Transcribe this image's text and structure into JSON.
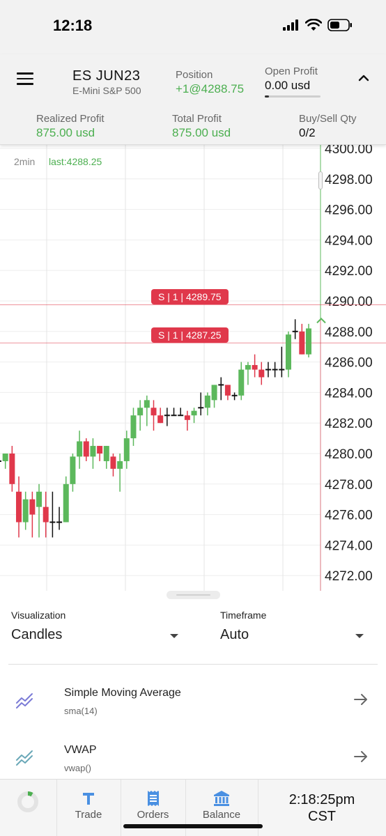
{
  "status_bar": {
    "time": "12:18"
  },
  "header": {
    "symbol": "ES JUN23",
    "symbol_desc": "E-Mini S&P 500",
    "position_label": "Position",
    "position_value": "+1@4288.75",
    "open_profit_label": "Open Profit",
    "open_profit_value": "0.00 usd",
    "realized_label": "Realized Profit",
    "realized_value": "875.00 usd",
    "total_label": "Total Profit",
    "total_value": "875.00 usd",
    "buysell_label": "Buy/Sell Qty",
    "buysell_value": "0/2"
  },
  "chart": {
    "interval": "2min",
    "last": "last:4288.25",
    "orders": [
      {
        "label": "S | 1 | 4289.75",
        "price": 4289.75
      },
      {
        "label": "S | 1 | 4287.25",
        "price": 4287.25
      }
    ],
    "colors": {
      "up": "#5cb85c",
      "down": "#e0384b",
      "doji": "#111111",
      "order": "#e0384b"
    }
  },
  "chart_data": {
    "type": "candlestick",
    "y_axis_ticks": [
      4300,
      4298,
      4296,
      4294,
      4292,
      4290,
      4288,
      4286,
      4284,
      4282,
      4280,
      4278,
      4276,
      4274,
      4272
    ],
    "y_axis_labels": [
      "4300.00",
      "4298.00",
      "4296.00",
      "4294.00",
      "4292.00",
      "4290.00",
      "4288.00",
      "4286.00",
      "4284.00",
      "4282.00",
      "4280.00",
      "4278.00",
      "4276.00",
      "4274.00",
      "4272.00"
    ],
    "ylim": [
      4271.5,
      4300.5
    ],
    "grid": true,
    "candles": [
      {
        "o": 4279.5,
        "h": 4280.5,
        "l": 4279.0,
        "c": 4279.5
      },
      {
        "o": 4279.5,
        "h": 4280.0,
        "l": 4279.0,
        "c": 4280.0
      },
      {
        "o": 4280.0,
        "h": 4280.5,
        "l": 4277.5,
        "c": 4278.0
      },
      {
        "o": 4277.5,
        "h": 4278.5,
        "l": 4274.5,
        "c": 4275.5
      },
      {
        "o": 4275.5,
        "h": 4277.5,
        "l": 4275.0,
        "c": 4277.0
      },
      {
        "o": 4277.0,
        "h": 4277.5,
        "l": 4274.5,
        "c": 4276.0
      },
      {
        "o": 4276.5,
        "h": 4278.0,
        "l": 4274.5,
        "c": 4277.5
      },
      {
        "o": 4276.5,
        "h": 4277.5,
        "l": 4274.5,
        "c": 4275.5
      },
      {
        "o": 4275.5,
        "h": 4277.5,
        "l": 4274.5,
        "c": 4275.5
      },
      {
        "o": 4275.5,
        "h": 4276.5,
        "l": 4275.0,
        "c": 4275.5
      },
      {
        "o": 4275.5,
        "h": 4278.5,
        "l": 4275.5,
        "c": 4278.0
      },
      {
        "o": 4278.0,
        "h": 4280.0,
        "l": 4277.5,
        "c": 4279.8
      },
      {
        "o": 4279.8,
        "h": 4281.5,
        "l": 4279.0,
        "c": 4280.8
      },
      {
        "o": 4280.8,
        "h": 4281.0,
        "l": 4279.5,
        "c": 4279.8
      },
      {
        "o": 4279.8,
        "h": 4281.0,
        "l": 4279.0,
        "c": 4280.5
      },
      {
        "o": 4280.5,
        "h": 4280.5,
        "l": 4279.5,
        "c": 4280.0
      },
      {
        "o": 4279.5,
        "h": 4280.5,
        "l": 4279.0,
        "c": 4280.5
      },
      {
        "o": 4279.8,
        "h": 4280.0,
        "l": 4278.5,
        "c": 4279.0
      },
      {
        "o": 4279.0,
        "h": 4280.0,
        "l": 4277.5,
        "c": 4279.5
      },
      {
        "o": 4279.5,
        "h": 4281.5,
        "l": 4279.0,
        "c": 4281.0
      },
      {
        "o": 4281.0,
        "h": 4283.0,
        "l": 4280.5,
        "c": 4282.5
      },
      {
        "o": 4282.5,
        "h": 4283.5,
        "l": 4281.5,
        "c": 4283.0
      },
      {
        "o": 4283.0,
        "h": 4283.8,
        "l": 4281.8,
        "c": 4283.5
      },
      {
        "o": 4283.0,
        "h": 4283.5,
        "l": 4281.5,
        "c": 4282.5
      },
      {
        "o": 4282.5,
        "h": 4283.0,
        "l": 4282.0,
        "c": 4282.0
      },
      {
        "o": 4282.5,
        "h": 4283.0,
        "l": 4281.8,
        "c": 4282.5
      },
      {
        "o": 4282.5,
        "h": 4283.0,
        "l": 4282.5,
        "c": 4282.5
      },
      {
        "o": 4282.5,
        "h": 4283.0,
        "l": 4282.5,
        "c": 4282.5
      },
      {
        "o": 4282.5,
        "h": 4282.8,
        "l": 4281.5,
        "c": 4282.2
      },
      {
        "o": 4282.5,
        "h": 4283.0,
        "l": 4282.0,
        "c": 4282.8
      },
      {
        "o": 4283.0,
        "h": 4284.0,
        "l": 4282.5,
        "c": 4283.0
      },
      {
        "o": 4283.0,
        "h": 4284.0,
        "l": 4282.5,
        "c": 4283.8
      },
      {
        "o": 4283.5,
        "h": 4284.5,
        "l": 4283.0,
        "c": 4284.5
      },
      {
        "o": 4284.5,
        "h": 4285.0,
        "l": 4283.5,
        "c": 4284.5
      },
      {
        "o": 4284.5,
        "h": 4284.5,
        "l": 4283.5,
        "c": 4283.8
      },
      {
        "o": 4283.8,
        "h": 4284.0,
        "l": 4283.5,
        "c": 4283.8
      },
      {
        "o": 4283.8,
        "h": 4286.0,
        "l": 4283.5,
        "c": 4285.5
      },
      {
        "o": 4285.5,
        "h": 4286.0,
        "l": 4284.5,
        "c": 4285.8
      },
      {
        "o": 4285.8,
        "h": 4286.5,
        "l": 4285.0,
        "c": 4285.5
      },
      {
        "o": 4285.5,
        "h": 4286.0,
        "l": 4284.5,
        "c": 4285.0
      },
      {
        "o": 4285.5,
        "h": 4286.0,
        "l": 4285.0,
        "c": 4285.5
      },
      {
        "o": 4285.5,
        "h": 4286.0,
        "l": 4285.0,
        "c": 4285.5
      },
      {
        "o": 4285.5,
        "h": 4287.0,
        "l": 4285.0,
        "c": 4285.5
      },
      {
        "o": 4285.5,
        "h": 4288.0,
        "l": 4285.0,
        "c": 4287.8
      },
      {
        "o": 4288.0,
        "h": 4288.8,
        "l": 4287.5,
        "c": 4288.0
      },
      {
        "o": 4288.0,
        "h": 4288.5,
        "l": 4286.5,
        "c": 4286.5
      },
      {
        "o": 4286.5,
        "h": 4288.5,
        "l": 4286.3,
        "c": 4288.2
      }
    ]
  },
  "panel": {
    "visualization_label": "Visualization",
    "visualization_value": "Candles",
    "timeframe_label": "Timeframe",
    "timeframe_value": "Auto",
    "indicators": [
      {
        "title": "Simple Moving Average",
        "subtitle": "sma(14)",
        "icon_color": "#7b7bd6"
      },
      {
        "title": "VWAP",
        "subtitle": "vwap()",
        "icon_color": "#6aa8b8"
      }
    ]
  },
  "nav": {
    "trade_label": "Trade",
    "orders_label": "Orders",
    "balance_label": "Balance",
    "clock_time": "2:18:25pm",
    "clock_tz": "CST",
    "accent": "#4a90e2"
  }
}
